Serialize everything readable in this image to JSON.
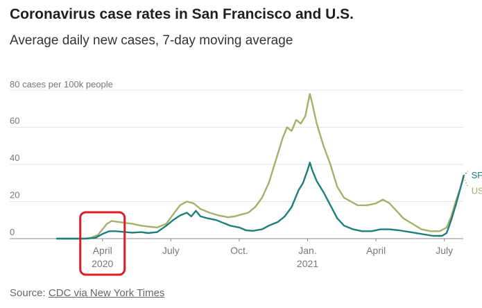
{
  "chart_data": {
    "type": "line",
    "title": "Coronavirus case rates in San Francisco and U.S.",
    "subtitle": "Average daily new cases, 7-day moving average",
    "ylabel": "80 cases per 100k people",
    "ylim": [
      0,
      80
    ],
    "y_ticks": [
      "0",
      "20",
      "40",
      "60"
    ],
    "x_ticks": [
      {
        "label": "April",
        "sub": "2020",
        "month": 3
      },
      {
        "label": "July",
        "sub": "",
        "month": 6
      },
      {
        "label": "Oct.",
        "sub": "",
        "month": 9
      },
      {
        "label": "Jan.",
        "sub": "2021",
        "month": 12
      },
      {
        "label": "April",
        "sub": "",
        "month": 15
      },
      {
        "label": "July",
        "sub": "",
        "month": 18
      }
    ],
    "x_unit": "months since Jan. 1, 2020",
    "xlim": [
      1,
      19.5
    ],
    "series": [
      {
        "name": "US",
        "color": "#a9ad6a",
        "points": [
          [
            1.0,
            0
          ],
          [
            2.2,
            0
          ],
          [
            2.5,
            0.5
          ],
          [
            2.8,
            2
          ],
          [
            3.0,
            5
          ],
          [
            3.2,
            8
          ],
          [
            3.4,
            9.5
          ],
          [
            3.7,
            9
          ],
          [
            4.0,
            8.5
          ],
          [
            4.3,
            8
          ],
          [
            4.7,
            7
          ],
          [
            5.0,
            6.5
          ],
          [
            5.4,
            6
          ],
          [
            5.8,
            8
          ],
          [
            6.1,
            13
          ],
          [
            6.4,
            18
          ],
          [
            6.7,
            20
          ],
          [
            7.0,
            19
          ],
          [
            7.3,
            16
          ],
          [
            7.7,
            14
          ],
          [
            8.1,
            12.5
          ],
          [
            8.5,
            11.5
          ],
          [
            8.8,
            12
          ],
          [
            9.1,
            13
          ],
          [
            9.4,
            14
          ],
          [
            9.7,
            17
          ],
          [
            10.0,
            22
          ],
          [
            10.3,
            30
          ],
          [
            10.6,
            42
          ],
          [
            10.9,
            54
          ],
          [
            11.1,
            60
          ],
          [
            11.3,
            58
          ],
          [
            11.5,
            64
          ],
          [
            11.7,
            62
          ],
          [
            11.9,
            66
          ],
          [
            12.0,
            72
          ],
          [
            12.1,
            78
          ],
          [
            12.2,
            73
          ],
          [
            12.4,
            62
          ],
          [
            12.7,
            50
          ],
          [
            13.0,
            40
          ],
          [
            13.3,
            28
          ],
          [
            13.6,
            22
          ],
          [
            13.9,
            20
          ],
          [
            14.2,
            18
          ],
          [
            14.6,
            18
          ],
          [
            15.0,
            19
          ],
          [
            15.3,
            21
          ],
          [
            15.6,
            19
          ],
          [
            15.9,
            15
          ],
          [
            16.2,
            11
          ],
          [
            16.6,
            8
          ],
          [
            17.0,
            5
          ],
          [
            17.4,
            4
          ],
          [
            17.8,
            4
          ],
          [
            18.1,
            6
          ],
          [
            18.3,
            12
          ],
          [
            18.5,
            20
          ],
          [
            18.7,
            27
          ],
          [
            18.85,
            33
          ]
        ]
      },
      {
        "name": "SF",
        "color": "#1d7d7e",
        "points": [
          [
            1.0,
            0
          ],
          [
            2.3,
            0
          ],
          [
            2.7,
            0.5
          ],
          [
            3.0,
            2.5
          ],
          [
            3.3,
            4
          ],
          [
            3.6,
            4
          ],
          [
            4.0,
            3.5
          ],
          [
            4.3,
            3.2
          ],
          [
            4.7,
            3.5
          ],
          [
            5.0,
            3
          ],
          [
            5.4,
            3.5
          ],
          [
            5.8,
            7
          ],
          [
            6.1,
            10
          ],
          [
            6.4,
            12.5
          ],
          [
            6.7,
            14
          ],
          [
            6.9,
            12
          ],
          [
            7.1,
            15
          ],
          [
            7.3,
            12
          ],
          [
            7.6,
            11
          ],
          [
            8.0,
            10
          ],
          [
            8.3,
            8.5
          ],
          [
            8.6,
            7
          ],
          [
            9.0,
            6
          ],
          [
            9.3,
            4.5
          ],
          [
            9.6,
            4.2
          ],
          [
            10.0,
            5
          ],
          [
            10.3,
            7
          ],
          [
            10.7,
            9
          ],
          [
            11.0,
            12
          ],
          [
            11.3,
            17
          ],
          [
            11.6,
            26
          ],
          [
            11.8,
            30
          ],
          [
            12.0,
            37
          ],
          [
            12.1,
            41
          ],
          [
            12.2,
            37
          ],
          [
            12.4,
            31
          ],
          [
            12.7,
            25
          ],
          [
            13.0,
            18
          ],
          [
            13.3,
            11
          ],
          [
            13.6,
            7
          ],
          [
            14.0,
            5
          ],
          [
            14.4,
            4
          ],
          [
            14.8,
            4
          ],
          [
            15.2,
            5
          ],
          [
            15.6,
            5
          ],
          [
            16.0,
            4.5
          ],
          [
            16.5,
            3.5
          ],
          [
            17.0,
            2.5
          ],
          [
            17.5,
            1.5
          ],
          [
            17.9,
            1.5
          ],
          [
            18.1,
            3
          ],
          [
            18.3,
            10
          ],
          [
            18.5,
            18
          ],
          [
            18.7,
            27
          ],
          [
            18.85,
            34
          ]
        ]
      }
    ],
    "annotation": {
      "type": "highlight-box",
      "target": "April 2020",
      "color": "#e01b24"
    }
  },
  "source": {
    "prefix": "Source: ",
    "link_text": "CDC via New York Times"
  }
}
